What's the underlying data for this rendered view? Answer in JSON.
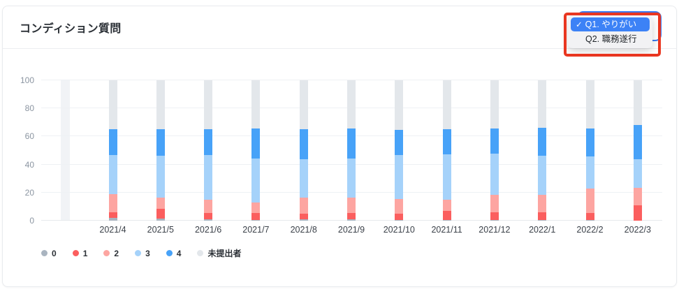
{
  "card": {
    "title": "コンディション質問"
  },
  "dropdown": {
    "checkmark": "✓",
    "options": [
      {
        "label": "Q1. やりがい",
        "selected": true
      },
      {
        "label": "Q2. 職務遂行",
        "selected": false
      }
    ],
    "selected_bg": "#3c82f6",
    "focus_ring_color": "#3b7bf0",
    "annotation_color": "#e93620"
  },
  "chart_data": {
    "type": "bar",
    "stacked": true,
    "title": "",
    "xlabel": "",
    "ylabel": "",
    "ylim": [
      0,
      100
    ],
    "yticks": [
      0,
      20,
      40,
      60,
      80,
      100
    ],
    "grid": true,
    "legend_position": "bottom-left",
    "categories": [
      "2021/4",
      "2021/5",
      "2021/6",
      "2021/7",
      "2021/8",
      "2021/9",
      "2021/10",
      "2021/11",
      "2021/12",
      "2022/1",
      "2022/2",
      "2022/3"
    ],
    "series": [
      {
        "name": "0",
        "color": "#a9b4c0",
        "values": [
          2,
          1.5,
          1,
          0.5,
          1,
          1,
          0.5,
          0.5,
          0.5,
          0.5,
          0.5,
          0
        ]
      },
      {
        "name": "1",
        "color": "#fb5e5e",
        "values": [
          4,
          7,
          4.5,
          5,
          4,
          4.5,
          4.5,
          6.5,
          5.5,
          5.5,
          5,
          11
        ]
      },
      {
        "name": "2",
        "color": "#fda5a1",
        "values": [
          13,
          8,
          9.5,
          7.5,
          11.5,
          11,
          10.5,
          8,
          12.5,
          12.5,
          17.5,
          12.5
        ]
      },
      {
        "name": "3",
        "color": "#a5d2fa",
        "values": [
          28,
          30,
          32,
          31.5,
          27.5,
          28,
          31.5,
          32.5,
          29.5,
          28,
          23,
          20.5
        ]
      },
      {
        "name": "4",
        "color": "#47a2f8",
        "values": [
          18,
          18.5,
          18,
          21,
          21,
          21,
          17.5,
          17.5,
          17.5,
          19.5,
          19.5,
          24
        ]
      },
      {
        "name": "未提出者",
        "color": "#e3e7eb",
        "values": [
          35,
          35,
          35,
          34.5,
          35,
          34.5,
          35.5,
          35,
          34.5,
          34,
          34.5,
          32
        ]
      }
    ]
  }
}
